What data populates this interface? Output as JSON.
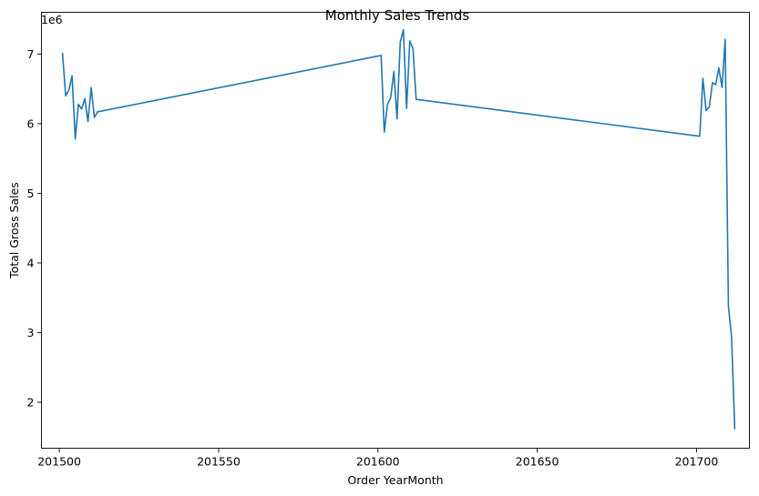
{
  "chart_data": {
    "type": "line",
    "title": "Monthly Sales Trends",
    "xlabel": "Order YearMonth",
    "ylabel": "Total Gross Sales",
    "y_offset_label": "1e6",
    "y_multiplier": 1000000,
    "xlim": [
      201494.4,
      201716.6
    ],
    "ylim": [
      1.34,
      7.6
    ],
    "x_ticks": [
      201500,
      201550,
      201600,
      201650,
      201700
    ],
    "y_ticks": [
      2,
      3,
      4,
      5,
      6,
      7
    ],
    "grid": false,
    "legend": "none",
    "color": "#1f77b4",
    "series": [
      {
        "x": [
          201501,
          201502,
          201503,
          201504,
          201505,
          201506,
          201507,
          201508,
          201509,
          201510,
          201511,
          201512,
          201601,
          201602,
          201603,
          201604,
          201605,
          201606,
          201607,
          201608,
          201609,
          201610,
          201611,
          201612,
          201701,
          201702,
          201703,
          201704,
          201705,
          201706,
          201707,
          201708,
          201709,
          201710,
          201711,
          201712
        ],
        "values": [
          7.02,
          6.4,
          6.48,
          6.69,
          5.78,
          6.28,
          6.21,
          6.36,
          6.03,
          6.52,
          6.09,
          6.17,
          6.98,
          5.88,
          6.28,
          6.37,
          6.75,
          6.07,
          7.17,
          7.35,
          6.22,
          7.19,
          7.08,
          6.35,
          5.82,
          6.65,
          6.19,
          6.24,
          6.59,
          6.56,
          6.8,
          6.52,
          7.21,
          3.38,
          2.93,
          1.61
        ]
      }
    ]
  }
}
